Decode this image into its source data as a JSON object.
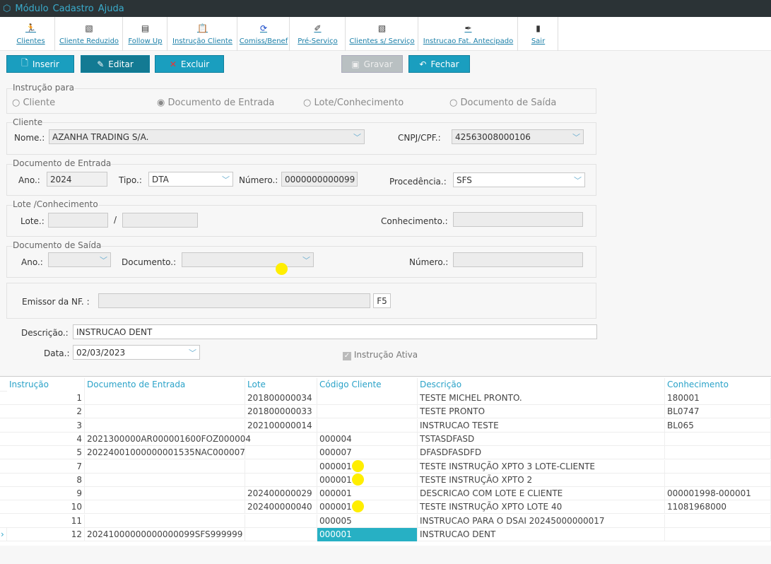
{
  "menu": {
    "items": [
      "Módulo",
      "Cadastro",
      "Ajuda"
    ]
  },
  "toolbar": [
    {
      "label": "Clientes",
      "icon": "running-man-icon"
    },
    {
      "label": "Cliente Reduzido",
      "icon": "edit-doc-icon"
    },
    {
      "label": "Follow Up",
      "icon": "follow-up-icon"
    },
    {
      "label": "Instrução Cliente",
      "icon": "clipboard-icon"
    },
    {
      "label": "Comiss/Benef",
      "icon": "refresh-icon"
    },
    {
      "label": "Pré-Serviço",
      "icon": "tools-icon"
    },
    {
      "label": "Clientes s/ Serviço",
      "icon": "edit-doc-icon"
    },
    {
      "label": "Instrucao Fat. Antecipado",
      "icon": "pen-icon"
    },
    {
      "label": "Sair",
      "icon": "exit-door-icon"
    }
  ],
  "actions": {
    "inserir": "Inserir",
    "editar": "Editar",
    "excluir": "Excluir",
    "gravar": "Gravar",
    "fechar": "Fechar"
  },
  "form": {
    "instrucao_para": {
      "title": "Instrução para",
      "options": [
        "Cliente",
        "Documento de Entrada",
        "Lote/Conhecimento",
        "Documento de Saída"
      ],
      "selected": "Documento de Entrada"
    },
    "cliente": {
      "title": "Cliente",
      "nome_label": "Nome.:",
      "nome": "AZANHA TRADING S/A.",
      "cnpj_label": "CNPJ/CPF.:",
      "cnpj": "42563008000106"
    },
    "doc_entrada": {
      "title": "Documento de Entrada",
      "ano_label": "Ano.:",
      "ano": "2024",
      "tipo_label": "Tipo.:",
      "tipo": "DTA",
      "numero_label": "Número.:",
      "numero": "0000000000099",
      "procedencia_label": "Procedência.:",
      "procedencia": "SFS"
    },
    "lote": {
      "title": "Lote /Conhecimento",
      "lote_label": "Lote.:",
      "sep": "/",
      "conhecimento_label": "Conhecimento.:"
    },
    "doc_saida": {
      "title": "Documento de Saída",
      "ano_label": "Ano.:",
      "documento_label": "Documento.:",
      "numero_label": "Número.:"
    },
    "emissor_label": "Emissor da NF. :",
    "f5": "F5",
    "descricao_label": "Descrição.:",
    "descricao": "INSTRUCAO DENT",
    "data_label": "Data.:",
    "data": "02/03/2023",
    "ativa_label": "Instrução Ativa",
    "ativa": true
  },
  "grid": {
    "columns": [
      "Instrução",
      "Documento de Entrada",
      "Lote",
      "Código Cliente",
      "Descrição",
      "Conhecimento"
    ],
    "rows": [
      [
        "1",
        "",
        "201800000034",
        "",
        "TESTE MICHEL PRONTO.",
        "180001"
      ],
      [
        "2",
        "",
        "201800000033",
        "",
        "TESTE PRONTO",
        "BL0747"
      ],
      [
        "3",
        "",
        "202100000014",
        "",
        "INSTRUCAO TESTE",
        "BL065"
      ],
      [
        "4",
        "2021300000AR000001600FOZ000004",
        "",
        "000004",
        "TSTASDFASD",
        ""
      ],
      [
        "5",
        "20224001000000001535NAC000007",
        "",
        "000007",
        "DFASDFASDFD",
        ""
      ],
      [
        "7",
        "",
        "",
        "000001",
        "TESTE INSTRUÇÃO XPTO 3 LOTE-CLIENTE",
        ""
      ],
      [
        "8",
        "",
        "",
        "000001",
        "TESTE INSTRUÇÃO XPTO 2",
        ""
      ],
      [
        "9",
        "",
        "202400000029",
        "000001",
        "DESCRICAO COM LOTE E CLIENTE",
        "000001998-000001"
      ],
      [
        "10",
        "",
        "202400000040",
        "000001",
        "TESTE INSTRUÇÃO XPTO LOTE 40",
        "11081968000"
      ],
      [
        "11",
        "",
        "",
        "000005",
        "INSTRUCAO PARA O DSAI 20245000000017",
        ""
      ],
      [
        "12",
        "20241000000000000099SFS999999",
        "",
        "000001",
        "INSTRUCAO DENT",
        ""
      ]
    ],
    "selected_row": 10,
    "selected_col": 3,
    "colors": {
      "accent": "#1a9ebf",
      "selected": "#27b0c4"
    }
  }
}
